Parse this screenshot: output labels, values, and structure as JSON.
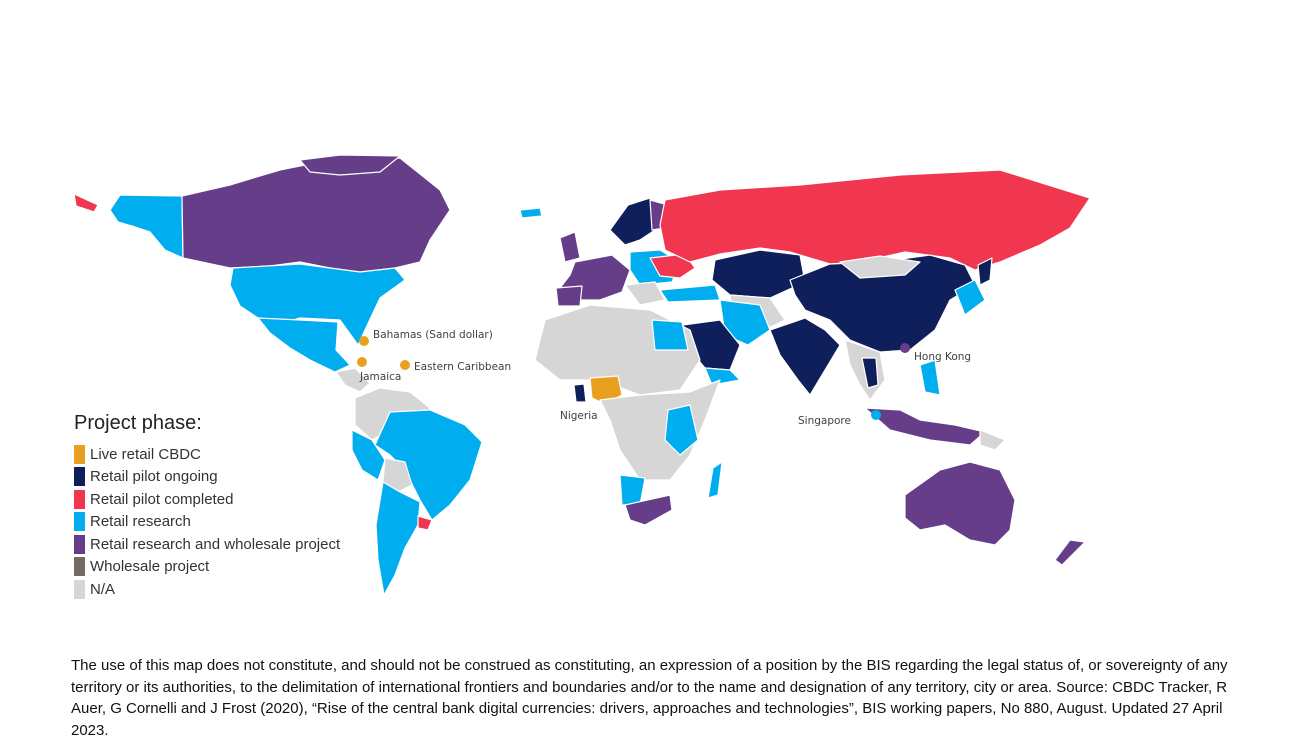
{
  "colors": {
    "live": "#E8A01E",
    "pilot_ongoing": "#0E1F5B",
    "pilot_completed": "#F0374F",
    "research": "#00AEEF",
    "research_wholesale": "#653D88",
    "wholesale": "#736A64",
    "na": "#D6D6D6"
  },
  "legend": {
    "title": "Project phase:",
    "items": [
      {
        "label": "Live retail CBDC",
        "color": "#E8A01E"
      },
      {
        "label": "Retail pilot ongoing",
        "color": "#0E1F5B"
      },
      {
        "label": "Retail pilot completed",
        "color": "#F0374F"
      },
      {
        "label": "Retail research",
        "color": "#00AEEF"
      },
      {
        "label": "Retail research and wholesale project",
        "color": "#653D88"
      },
      {
        "label": "Wholesale project",
        "color": "#736A64"
      },
      {
        "label": "N/A",
        "color": "#D6D6D6"
      }
    ]
  },
  "labels": {
    "bahamas": "Bahamas (Sand dollar)",
    "jamaica": "Jamaica",
    "eastern_caribbean": "Eastern Caribbean",
    "nigeria": "Nigeria",
    "singapore": "Singapore",
    "hong_kong": "Hong Kong"
  },
  "footer": "The use of this map does not constitute, and should not be construed as constituting, an expression of a position by the BIS regarding the legal status of, or sovereignty of any territory or its authorities, to the delimitation of international frontiers and boundaries and/or to the name and designation of any territory, city or area. Source: CBDC Tracker, R Auer, G Cornelli and J Frost (2020), “Rise of the central bank digital currencies: drivers, approaches and  technologies”, BIS working papers, No 880, August. Updated 27 April 2023."
}
